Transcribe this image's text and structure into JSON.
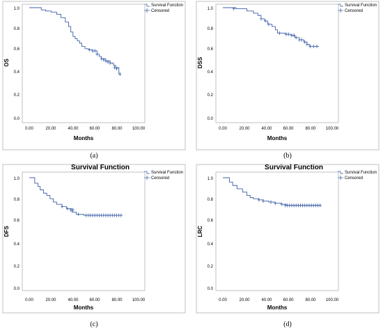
{
  "chart_data": [
    {
      "type": "line",
      "caption": "(a)",
      "title": "",
      "xlabel": "Months",
      "ylabel": "OS",
      "xlim": [
        0,
        100
      ],
      "ylim": [
        0,
        1
      ],
      "xticks": [
        "0.00",
        "20.00",
        "40.00",
        "60.00",
        "80.00",
        "100.00"
      ],
      "yticks": [
        "0.0",
        "0.2",
        "0.4",
        "0.6",
        "0.8",
        "1.0"
      ],
      "legend": [
        "Survival Function",
        "Censored"
      ],
      "series": [
        {
          "name": "Survival Function",
          "steps": [
            [
              0,
              1.0
            ],
            [
              11,
              0.98
            ],
            [
              15,
              0.97
            ],
            [
              20,
              0.96
            ],
            [
              25,
              0.94
            ],
            [
              29,
              0.91
            ],
            [
              33,
              0.87
            ],
            [
              36,
              0.83
            ],
            [
              38,
              0.78
            ],
            [
              40,
              0.74
            ],
            [
              42,
              0.72
            ],
            [
              44,
              0.7
            ],
            [
              46,
              0.68
            ],
            [
              48,
              0.65
            ],
            [
              51,
              0.63
            ],
            [
              54,
              0.62
            ],
            [
              58,
              0.61
            ],
            [
              62,
              0.58
            ],
            [
              64,
              0.56
            ],
            [
              66,
              0.54
            ],
            [
              70,
              0.52
            ],
            [
              74,
              0.5
            ],
            [
              77,
              0.48
            ],
            [
              79,
              0.46
            ],
            [
              82,
              0.4
            ],
            [
              83,
              0.4
            ]
          ]
        },
        {
          "name": "Censored",
          "points": [
            [
              55,
              0.62
            ],
            [
              58,
              0.61
            ],
            [
              60,
              0.61
            ],
            [
              62,
              0.58
            ],
            [
              66,
              0.54
            ],
            [
              68,
              0.53
            ],
            [
              70,
              0.52
            ],
            [
              72,
              0.51
            ],
            [
              74,
              0.5
            ],
            [
              78,
              0.46
            ],
            [
              80,
              0.45
            ],
            [
              83,
              0.4
            ]
          ]
        }
      ]
    },
    {
      "type": "line",
      "caption": "(b)",
      "title": "",
      "xlabel": "Months",
      "ylabel": "DSS",
      "xlim": [
        0,
        100
      ],
      "ylim": [
        0,
        1
      ],
      "xticks": [
        "0.00",
        "20.00",
        "40.00",
        "60.00",
        "80.00",
        "100.00"
      ],
      "yticks": [
        "0.0",
        "0.2",
        "0.4",
        "0.6",
        "0.8",
        "1.0"
      ],
      "legend": [
        "Survival Function",
        "Censored"
      ],
      "series": [
        {
          "name": "Survival Function",
          "steps": [
            [
              0,
              1.0
            ],
            [
              12,
              0.99
            ],
            [
              22,
              0.97
            ],
            [
              28,
              0.95
            ],
            [
              32,
              0.93
            ],
            [
              35,
              0.9
            ],
            [
              38,
              0.88
            ],
            [
              41,
              0.85
            ],
            [
              45,
              0.83
            ],
            [
              48,
              0.8
            ],
            [
              50,
              0.77
            ],
            [
              57,
              0.76
            ],
            [
              62,
              0.75
            ],
            [
              66,
              0.73
            ],
            [
              70,
              0.71
            ],
            [
              74,
              0.69
            ],
            [
              77,
              0.67
            ],
            [
              79,
              0.65
            ],
            [
              88,
              0.65
            ]
          ]
        },
        {
          "name": "Censored",
          "points": [
            [
              10,
              0.99
            ],
            [
              35,
              0.9
            ],
            [
              39,
              0.88
            ],
            [
              42,
              0.85
            ],
            [
              52,
              0.77
            ],
            [
              58,
              0.76
            ],
            [
              60,
              0.76
            ],
            [
              63,
              0.75
            ],
            [
              65,
              0.75
            ],
            [
              67,
              0.73
            ],
            [
              70,
              0.71
            ],
            [
              72,
              0.71
            ],
            [
              75,
              0.69
            ],
            [
              77,
              0.67
            ],
            [
              80,
              0.65
            ],
            [
              83,
              0.65
            ],
            [
              86,
              0.65
            ]
          ]
        }
      ]
    },
    {
      "type": "line",
      "caption": "(c)",
      "title": "Survival Function",
      "xlabel": "Months",
      "ylabel": "DFS",
      "xlim": [
        0,
        100
      ],
      "ylim": [
        0,
        1
      ],
      "xticks": [
        "0.00",
        "20.00",
        "40.00",
        "60.00",
        "80.00",
        "100.00"
      ],
      "yticks": [
        "0.0",
        "0.2",
        "0.4",
        "0.6",
        "0.8",
        "1.0"
      ],
      "legend": [
        "Survival Function",
        "Censored"
      ],
      "series": [
        {
          "name": "Survival Function",
          "steps": [
            [
              0,
              1.0
            ],
            [
              5,
              0.95
            ],
            [
              8,
              0.92
            ],
            [
              10,
              0.89
            ],
            [
              13,
              0.86
            ],
            [
              16,
              0.84
            ],
            [
              19,
              0.81
            ],
            [
              22,
              0.78
            ],
            [
              25,
              0.76
            ],
            [
              30,
              0.74
            ],
            [
              34,
              0.72
            ],
            [
              39,
              0.69
            ],
            [
              43,
              0.67
            ],
            [
              50,
              0.66
            ],
            [
              85,
              0.66
            ]
          ]
        },
        {
          "name": "Censored",
          "points": [
            [
              30,
              0.74
            ],
            [
              35,
              0.72
            ],
            [
              38,
              0.71
            ],
            [
              40,
              0.71
            ],
            [
              45,
              0.67
            ],
            [
              52,
              0.66
            ],
            [
              54,
              0.66
            ],
            [
              56,
              0.66
            ],
            [
              58,
              0.66
            ],
            [
              60,
              0.66
            ],
            [
              62,
              0.66
            ],
            [
              64,
              0.66
            ],
            [
              66,
              0.66
            ],
            [
              68,
              0.66
            ],
            [
              70,
              0.66
            ],
            [
              72,
              0.66
            ],
            [
              74,
              0.66
            ],
            [
              76,
              0.66
            ],
            [
              78,
              0.66
            ],
            [
              80,
              0.66
            ],
            [
              82,
              0.66
            ],
            [
              84,
              0.66
            ]
          ]
        }
      ]
    },
    {
      "type": "line",
      "caption": "(d)",
      "title": "Survival Function",
      "xlabel": "Months",
      "ylabel": "LRC",
      "xlim": [
        0,
        100
      ],
      "ylim": [
        0,
        1
      ],
      "xticks": [
        "0.00",
        "20.00",
        "40.00",
        "60.00",
        "80.00",
        "100.00"
      ],
      "yticks": [
        "0.0",
        "0.2",
        "0.4",
        "0.6",
        "0.8",
        "1.0"
      ],
      "legend": [
        "Survival Function",
        "Censored"
      ],
      "series": [
        {
          "name": "Survival Function",
          "steps": [
            [
              0,
              1.0
            ],
            [
              6,
              0.96
            ],
            [
              9,
              0.93
            ],
            [
              13,
              0.9
            ],
            [
              18,
              0.87
            ],
            [
              22,
              0.84
            ],
            [
              25,
              0.82
            ],
            [
              28,
              0.81
            ],
            [
              33,
              0.8
            ],
            [
              37,
              0.79
            ],
            [
              42,
              0.78
            ],
            [
              47,
              0.77
            ],
            [
              53,
              0.76
            ],
            [
              58,
              0.75
            ],
            [
              90,
              0.75
            ]
          ]
        },
        {
          "name": "Censored",
          "points": [
            [
              33,
              0.8
            ],
            [
              37,
              0.79
            ],
            [
              44,
              0.78
            ],
            [
              48,
              0.77
            ],
            [
              54,
              0.76
            ],
            [
              57,
              0.75
            ],
            [
              59,
              0.75
            ],
            [
              61,
              0.75
            ],
            [
              63,
              0.75
            ],
            [
              65,
              0.75
            ],
            [
              67,
              0.75
            ],
            [
              69,
              0.75
            ],
            [
              71,
              0.75
            ],
            [
              73,
              0.75
            ],
            [
              75,
              0.75
            ],
            [
              77,
              0.75
            ],
            [
              79,
              0.75
            ],
            [
              81,
              0.75
            ],
            [
              83,
              0.75
            ],
            [
              85,
              0.75
            ],
            [
              87,
              0.75
            ],
            [
              89,
              0.75
            ]
          ]
        }
      ]
    }
  ],
  "colors": {
    "line": "#3c5fa8",
    "frame": "#9a9a9a",
    "text": "#000000"
  }
}
